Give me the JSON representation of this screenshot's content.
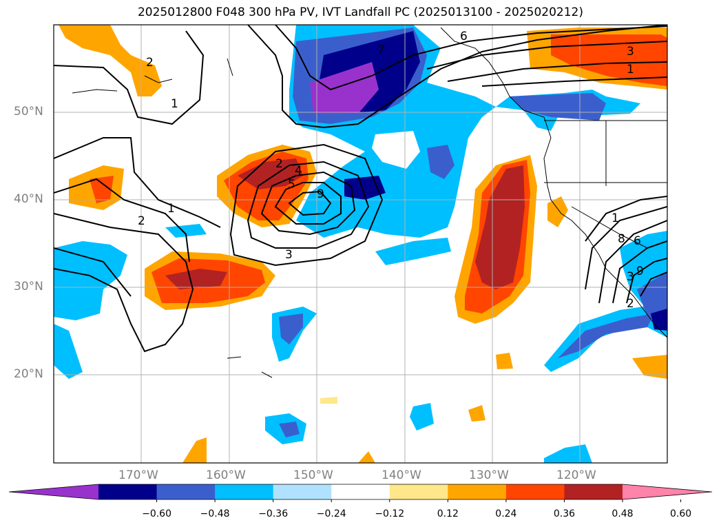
{
  "title": "2025012800 F048 300 hPa PV, IVT Landfall PC (2025013100 - 2025020212)",
  "lat_labels": [
    "50°N",
    "40°N",
    "30°N",
    "20°N"
  ],
  "lon_labels": [
    "170°W",
    "160°W",
    "150°W",
    "140°W",
    "130°W",
    "120°W"
  ],
  "colorbar": {
    "ticks": [
      "−0.60",
      "−0.48",
      "−0.36",
      "−0.24",
      "−0.12",
      "0.12",
      "0.24",
      "0.36",
      "0.48",
      "0.60"
    ],
    "colors": [
      "#9932cc",
      "#00008b",
      "#3a5fcd",
      "#00bfff",
      "#b0e2ff",
      "#ffffff",
      "#ffe78a",
      "#ffa500",
      "#ff4500",
      "#b22222",
      "#ff83aa"
    ]
  },
  "contour_labels": [
    "2",
    "1",
    "7",
    "6",
    "3",
    "1",
    "2",
    "4",
    "5",
    "9",
    "1",
    "2",
    "3",
    "1",
    "8",
    "3",
    "9",
    "2",
    "6"
  ],
  "colors": {
    "grid": "#b0b0b0",
    "coast": "#000000",
    "contour": "#000000"
  }
}
